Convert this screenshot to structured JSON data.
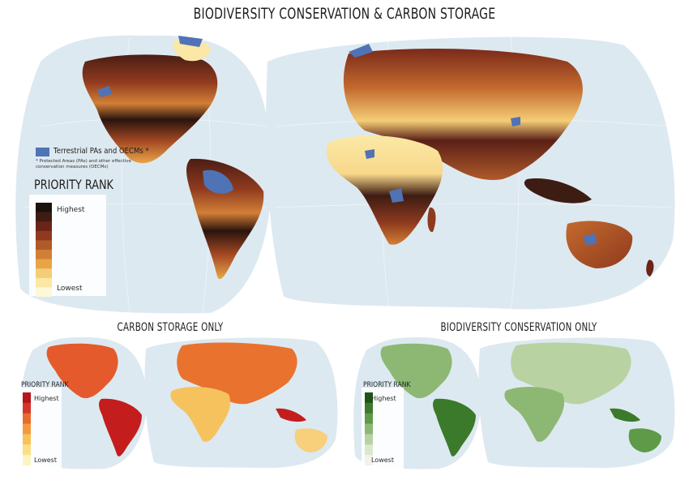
{
  "title": "BIODIVERSITY CONSERVATION & CARBON STORAGE",
  "main_map": {
    "protected_areas_label": "Terrestrial PAs and OECMs *",
    "protected_areas_note": "* Protected Areas (PAs) and other effective conservation measures (OECMs)",
    "legend_title": "PRIORITY RANK",
    "legend_high": "Highest",
    "legend_low": "Lowest"
  },
  "carbon_map": {
    "title": "CARBON STORAGE ONLY",
    "legend_title": "PRIORITY RANK",
    "legend_high": "Highest",
    "legend_low": "Lowest"
  },
  "bio_map": {
    "title": "BIODIVERSITY CONSERVATION ONLY",
    "legend_title": "PRIORITY RANK",
    "legend_high": "Highest",
    "legend_low": "Lowest"
  },
  "colors": {
    "ocean": "#dde9f0",
    "protected_areas": "#4f73b5",
    "combined_ramp": [
      "#1a120c",
      "#3d1c14",
      "#6b2418",
      "#8f3a1e",
      "#b05a2a",
      "#d27f36",
      "#e8a548",
      "#f4cd76",
      "#fbe8a6",
      "#fef8d8"
    ],
    "carbon_ramp": [
      "#b7141b",
      "#d4352a",
      "#e96a2f",
      "#f49a3e",
      "#f8c15a",
      "#fbe088",
      "#fdf4c4"
    ],
    "bio_ramp": [
      "#1f5418",
      "#3b7a2a",
      "#5e9a48",
      "#8cb873",
      "#b8d2a2",
      "#dce7cf",
      "#f1f3ea"
    ]
  }
}
